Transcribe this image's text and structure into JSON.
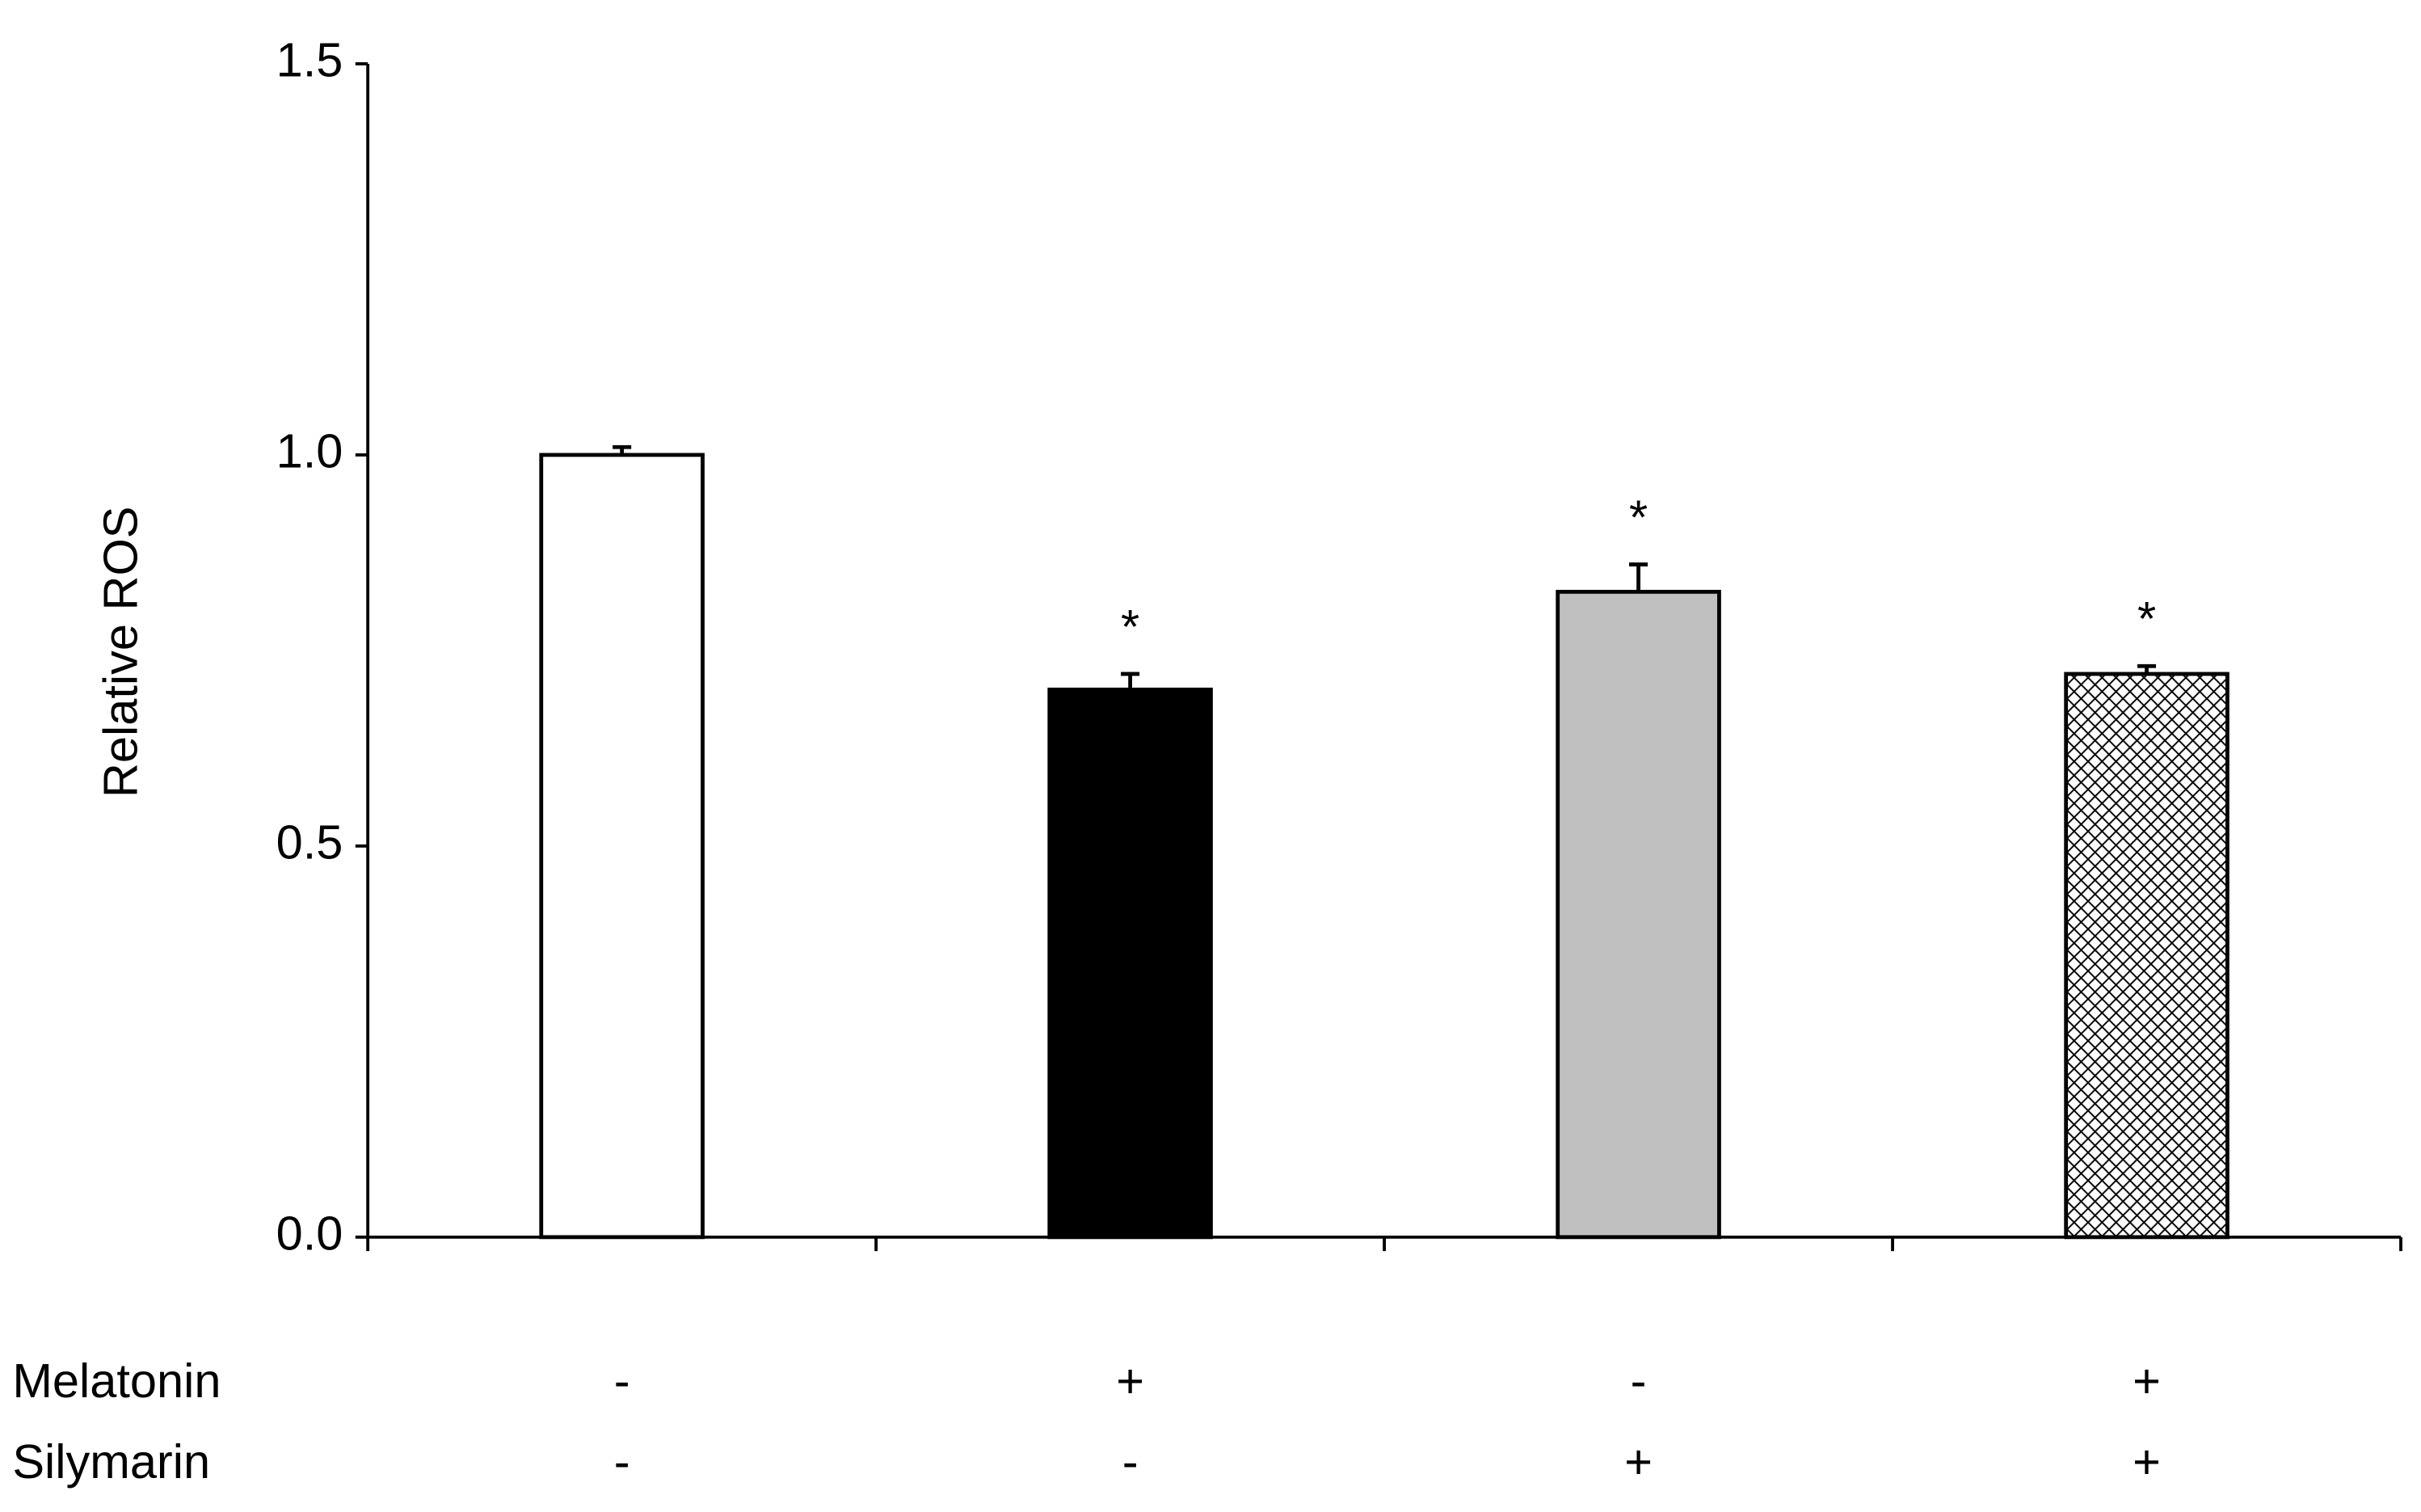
{
  "chart_data": {
    "type": "bar",
    "ylabel": "Relative ROS",
    "categories": [
      null,
      null,
      null,
      null
    ],
    "values": [
      1.0,
      0.7,
      0.825,
      0.72
    ],
    "errors": [
      0.01,
      0.02,
      0.035,
      0.01
    ],
    "significance": [
      null,
      "*",
      "*",
      "*"
    ],
    "fills": [
      "#ffffff",
      "#000000",
      "#c0c0c0",
      "crosshatch"
    ],
    "ylim": [
      0,
      1.5
    ],
    "yticks": [
      {
        "value": 0,
        "label": "0.0"
      },
      {
        "value": 0.5,
        "label": "0.5"
      },
      {
        "value": 1,
        "label": "1.0"
      },
      {
        "value": 1.5,
        "label": "1.5"
      }
    ],
    "grid": false,
    "treatments": [
      {
        "name": "Melatonin",
        "signs": [
          "-",
          "+",
          "-",
          "+"
        ]
      },
      {
        "name": "Silymarin",
        "signs": [
          "-",
          "-",
          "+",
          "+"
        ]
      }
    ]
  }
}
